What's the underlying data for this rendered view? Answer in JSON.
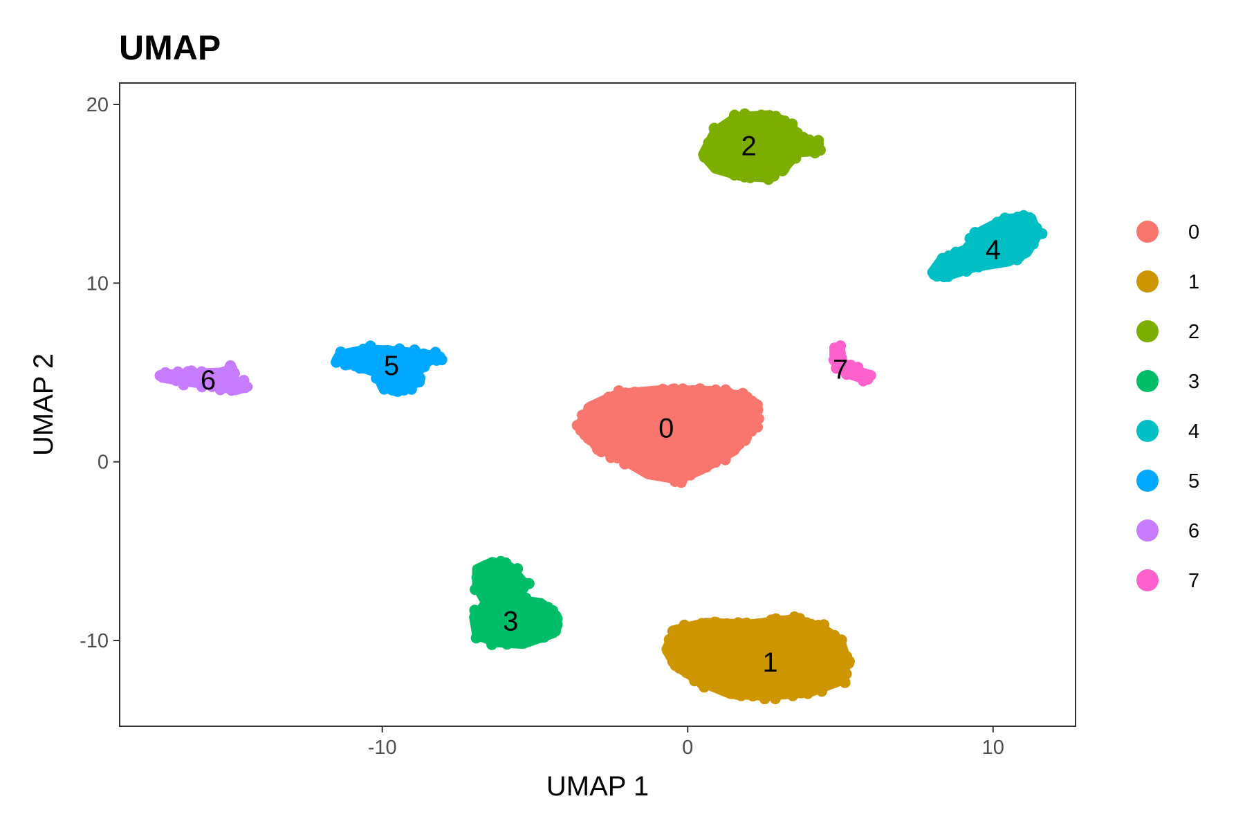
{
  "chart_data": {
    "type": "scatter",
    "title": "UMAP",
    "xlabel": "UMAP 1",
    "ylabel": "UMAP 2",
    "xlim": [
      -18.6,
      12.7
    ],
    "ylim": [
      -14.8,
      21.2
    ],
    "x_ticks": [
      -10,
      0,
      10
    ],
    "x_tick_labels": [
      "-10",
      "0",
      "10"
    ],
    "y_ticks": [
      -10,
      0,
      10,
      20
    ],
    "y_tick_labels": [
      "-10",
      "0",
      "10",
      "20"
    ],
    "grid": false,
    "legend_position": "right",
    "series": [
      {
        "name": "0",
        "color": "#F8766D",
        "center": [
          -0.7,
          1.9
        ],
        "outline": [
          [
            -3.5,
            2.2
          ],
          [
            -3.2,
            3.1
          ],
          [
            -2.3,
            3.8
          ],
          [
            -1.0,
            4.0
          ],
          [
            0.5,
            4.0
          ],
          [
            1.8,
            3.7
          ],
          [
            2.3,
            3.2
          ],
          [
            2.2,
            2.0
          ],
          [
            1.5,
            0.6
          ],
          [
            0.5,
            -0.4
          ],
          [
            -0.3,
            -1.0
          ],
          [
            -1.3,
            -0.7
          ],
          [
            -2.4,
            0.4
          ],
          [
            -3.2,
            1.2
          ]
        ]
      },
      {
        "name": "1",
        "color": "#CD9600",
        "center": [
          2.7,
          -11.2
        ],
        "outline": [
          [
            -0.7,
            -10.5
          ],
          [
            -0.4,
            -9.4
          ],
          [
            0.6,
            -9.0
          ],
          [
            2.0,
            -9.1
          ],
          [
            3.5,
            -8.8
          ],
          [
            4.4,
            -9.3
          ],
          [
            5.0,
            -10.0
          ],
          [
            5.2,
            -11.1
          ],
          [
            5.1,
            -12.2
          ],
          [
            4.0,
            -12.9
          ],
          [
            2.6,
            -13.1
          ],
          [
            1.4,
            -13.0
          ],
          [
            0.4,
            -12.3
          ],
          [
            -0.4,
            -11.4
          ]
        ]
      },
      {
        "name": "2",
        "color": "#7CAE00",
        "center": [
          2.0,
          17.7
        ],
        "outline": [
          [
            0.5,
            17.2
          ],
          [
            0.9,
            18.5
          ],
          [
            1.6,
            19.3
          ],
          [
            2.6,
            19.4
          ],
          [
            3.4,
            18.8
          ],
          [
            3.7,
            18.0
          ],
          [
            4.3,
            17.8
          ],
          [
            4.3,
            17.4
          ],
          [
            3.6,
            17.3
          ],
          [
            3.2,
            16.5
          ],
          [
            2.6,
            15.9
          ],
          [
            1.7,
            16.0
          ],
          [
            0.9,
            16.4
          ]
        ]
      },
      {
        "name": "3",
        "color": "#00BE67",
        "center": [
          -5.8,
          -8.9
        ],
        "outline": [
          [
            -6.9,
            -6.0
          ],
          [
            -6.4,
            -5.6
          ],
          [
            -5.8,
            -5.9
          ],
          [
            -5.3,
            -6.9
          ],
          [
            -5.6,
            -7.7
          ],
          [
            -4.8,
            -7.9
          ],
          [
            -4.3,
            -8.6
          ],
          [
            -4.4,
            -9.6
          ],
          [
            -5.4,
            -10.2
          ],
          [
            -6.3,
            -10.1
          ],
          [
            -6.9,
            -9.7
          ],
          [
            -7.0,
            -8.7
          ],
          [
            -6.6,
            -7.9
          ],
          [
            -6.9,
            -7.0
          ]
        ]
      },
      {
        "name": "4",
        "color": "#00BFC4",
        "center": [
          10.0,
          11.9
        ],
        "outline": [
          [
            8.0,
            10.6
          ],
          [
            8.3,
            11.3
          ],
          [
            9.1,
            11.9
          ],
          [
            9.6,
            12.9
          ],
          [
            10.4,
            13.6
          ],
          [
            11.2,
            13.7
          ],
          [
            11.5,
            12.8
          ],
          [
            11.1,
            11.7
          ],
          [
            10.5,
            11.2
          ],
          [
            9.4,
            10.9
          ],
          [
            8.5,
            10.4
          ]
        ]
      },
      {
        "name": "5",
        "color": "#00A9FF",
        "center": [
          -9.7,
          5.4
        ],
        "outline": [
          [
            -11.4,
            6.0
          ],
          [
            -10.5,
            6.3
          ],
          [
            -9.5,
            6.2
          ],
          [
            -8.5,
            6.0
          ],
          [
            -8.1,
            5.9
          ],
          [
            -8.5,
            5.6
          ],
          [
            -8.8,
            5.1
          ],
          [
            -8.9,
            4.4
          ],
          [
            -9.5,
            3.9
          ],
          [
            -10.0,
            4.2
          ],
          [
            -10.2,
            5.0
          ],
          [
            -10.9,
            5.4
          ],
          [
            -11.5,
            5.7
          ]
        ]
      },
      {
        "name": "6",
        "color": "#C77CFF",
        "center": [
          -15.7,
          4.6
        ],
        "outline": [
          [
            -17.2,
            4.9
          ],
          [
            -16.2,
            4.95
          ],
          [
            -15.3,
            5.0
          ],
          [
            -14.9,
            5.2
          ],
          [
            -15.0,
            4.7
          ],
          [
            -14.4,
            4.2
          ],
          [
            -14.8,
            4.0
          ],
          [
            -15.6,
            4.3
          ],
          [
            -16.5,
            4.5
          ],
          [
            -17.2,
            4.7
          ]
        ]
      },
      {
        "name": "7",
        "color": "#FF61CC",
        "center": [
          5.0,
          5.2
        ],
        "outline": [
          [
            4.8,
            6.4
          ],
          [
            5.0,
            6.3
          ],
          [
            5.05,
            5.6
          ],
          [
            5.5,
            5.1
          ],
          [
            5.9,
            4.9
          ],
          [
            5.8,
            4.6
          ],
          [
            5.3,
            4.9
          ],
          [
            4.9,
            5.3
          ],
          [
            4.8,
            5.9
          ]
        ]
      }
    ]
  }
}
